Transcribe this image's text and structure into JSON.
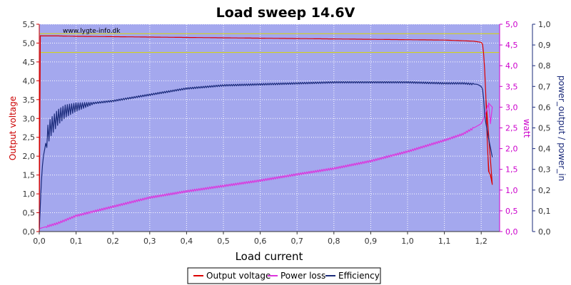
{
  "chart_data": {
    "type": "line",
    "title": "Load sweep 14.6V",
    "watermark": "www.lygte-info.dk",
    "xlabel": "Load current",
    "ylabel_left": "Output voltage",
    "ylabel_mid": "watt",
    "ylabel_right": "power_output / power_in",
    "xlim": [
      0,
      1.25
    ],
    "ylim_left": [
      0,
      5.5
    ],
    "ylim_mid": [
      0,
      5.0
    ],
    "ylim_right": [
      0,
      1.0
    ],
    "xticks": [
      "0,0",
      "0,1",
      "0,2",
      "0,3",
      "0,4",
      "0,5",
      "0,6",
      "0,7",
      "0,8",
      "0,9",
      "1,0",
      "1,1",
      "1,2"
    ],
    "yticks_left": [
      "0,0",
      "0,5",
      "1,0",
      "1,5",
      "2,0",
      "2,5",
      "3,0",
      "3,5",
      "4,0",
      "4,5",
      "5,0",
      "5,5"
    ],
    "yticks_mid": [
      "0,0",
      "0,5",
      "1,0",
      "1,5",
      "2,0",
      "2,5",
      "3,0",
      "3,5",
      "4,0",
      "4,5",
      "5,0"
    ],
    "yticks_right": [
      "0,0",
      "0,1",
      "0,2",
      "0,3",
      "0,4",
      "0,5",
      "0,6",
      "0,7",
      "0,8",
      "0,9",
      "1,0"
    ],
    "reference_lines_left": [
      5.25,
      4.75
    ],
    "grid": true,
    "legend_position": "bottom",
    "colors": {
      "plot_bg": "#a4a8ee",
      "voltage": "#dd0000",
      "power_loss": "#dd33dd",
      "efficiency": "#1a2a7a",
      "reference": "#d8d800",
      "left_axis": "#cc0000",
      "mid_axis": "#cc00cc",
      "right_axis": "#1a2a7a"
    },
    "series": [
      {
        "name": "Output voltage",
        "axis": "left",
        "x": [
          0.0,
          0.001,
          0.005,
          0.05,
          0.1,
          0.2,
          0.3,
          0.4,
          0.5,
          0.6,
          0.7,
          0.8,
          0.9,
          1.0,
          1.1,
          1.18,
          1.2,
          1.205,
          1.21,
          1.213,
          1.215,
          1.22,
          1.225,
          1.23
        ],
        "y": [
          0.1,
          5.2,
          5.19,
          5.19,
          5.18,
          5.17,
          5.16,
          5.15,
          5.14,
          5.13,
          5.12,
          5.11,
          5.1,
          5.09,
          5.08,
          5.05,
          5.02,
          4.95,
          4.2,
          3.5,
          2.8,
          1.6,
          1.5,
          1.25
        ]
      },
      {
        "name": "Power loss",
        "axis": "mid",
        "x": [
          0.0,
          0.05,
          0.1,
          0.2,
          0.3,
          0.4,
          0.5,
          0.6,
          0.7,
          0.8,
          0.9,
          1.0,
          1.1,
          1.15,
          1.2,
          1.21,
          1.22,
          1.225,
          1.23
        ],
        "y": [
          0.07,
          0.2,
          0.38,
          0.6,
          0.82,
          0.97,
          1.1,
          1.23,
          1.38,
          1.52,
          1.7,
          1.93,
          2.2,
          2.35,
          2.6,
          2.8,
          3.1,
          2.6,
          3.0
        ]
      },
      {
        "name": "Efficiency",
        "axis": "right",
        "x": [
          0.0,
          0.005,
          0.01,
          0.02,
          0.03,
          0.05,
          0.07,
          0.1,
          0.15,
          0.2,
          0.3,
          0.4,
          0.5,
          0.6,
          0.7,
          0.8,
          0.9,
          1.0,
          1.1,
          1.15,
          1.19,
          1.2,
          1.205,
          1.21,
          1.22,
          1.23
        ],
        "y": [
          0.0,
          0.22,
          0.35,
          0.45,
          0.5,
          0.55,
          0.58,
          0.6,
          0.62,
          0.63,
          0.66,
          0.69,
          0.705,
          0.71,
          0.715,
          0.72,
          0.72,
          0.72,
          0.715,
          0.715,
          0.71,
          0.7,
          0.68,
          0.55,
          0.45,
          0.36
        ]
      }
    ]
  }
}
